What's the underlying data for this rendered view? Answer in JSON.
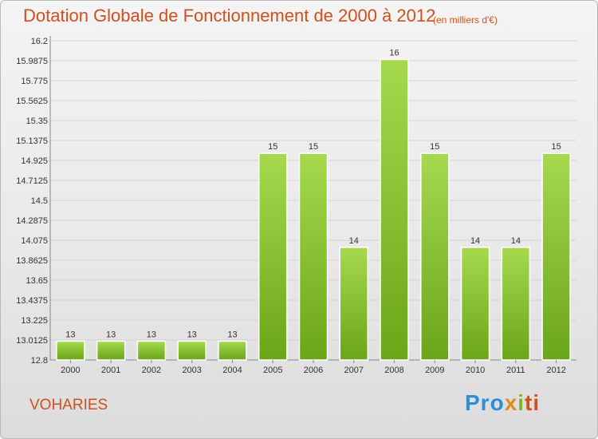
{
  "header": {
    "title": "Dotation Globale de Fonctionnement de 2000 à 2012",
    "subtitle": "(en milliers d'€)"
  },
  "footer": {
    "place": "VOHARIES",
    "logo": [
      "Pro",
      "x",
      "i",
      "ti"
    ]
  },
  "colors": {
    "title": "#d24f1c",
    "bar_light": "#a6d94e",
    "bar_dark": "#6aa617",
    "grid": "#d4d4d4"
  },
  "chart_data": {
    "type": "bar",
    "title": "Dotation Globale de Fonctionnement de 2000 à 2012",
    "subtitle": "(en milliers d'€)",
    "xlabel": "",
    "ylabel": "",
    "ylim": [
      12.8,
      16.2
    ],
    "yticks": [
      "16.2",
      "15.9875",
      "15.775",
      "15.5625",
      "15.35",
      "15.1375",
      "14.925",
      "14.7125",
      "14.5",
      "14.2875",
      "14.075",
      "13.8625",
      "13.65",
      "13.4375",
      "13.225",
      "13.0125",
      "12.8"
    ],
    "categories": [
      "2000",
      "2001",
      "2002",
      "2003",
      "2004",
      "2005",
      "2006",
      "2007",
      "2008",
      "2009",
      "2010",
      "2011",
      "2012"
    ],
    "values": [
      13,
      13,
      13,
      13,
      13,
      15,
      15,
      14,
      16,
      15,
      14,
      14,
      15
    ],
    "value_labels": [
      "13",
      "13",
      "13",
      "13",
      "13",
      "15",
      "15",
      "14",
      "16",
      "15",
      "14",
      "14",
      "15"
    ],
    "grid": true,
    "legend": "none"
  }
}
